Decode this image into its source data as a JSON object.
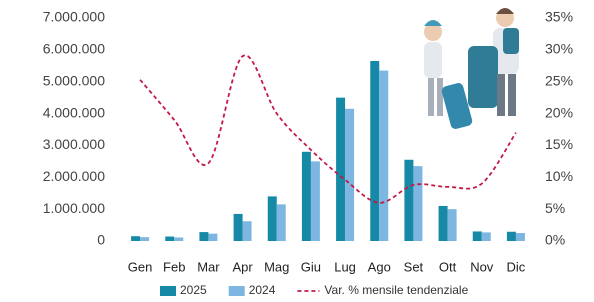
{
  "chart_data": {
    "type": "bar",
    "categories": [
      "Gen",
      "Feb",
      "Mar",
      "Apr",
      "Mag",
      "Giu",
      "Lug",
      "Ago",
      "Set",
      "Ott",
      "Nov",
      "Dic"
    ],
    "series": [
      {
        "name": "2025",
        "type": "bar",
        "color": "#1689a6",
        "values": [
          150000,
          140000,
          280000,
          850000,
          1400000,
          2800000,
          4500000,
          5650000,
          2550000,
          1100000,
          300000,
          290000
        ]
      },
      {
        "name": "2024",
        "type": "bar",
        "color": "#7db6e0",
        "values": [
          120000,
          110000,
          230000,
          620000,
          1150000,
          2500000,
          4150000,
          5350000,
          2350000,
          1000000,
          270000,
          250000
        ]
      },
      {
        "name": "Var. % mensile tendenziale",
        "type": "line",
        "axis": "y2",
        "color": "#c21a45",
        "values": [
          25.3,
          19,
          12.2,
          29,
          20,
          14.3,
          9.6,
          6,
          8.8,
          8.5,
          9,
          17
        ]
      }
    ],
    "ylim": [
      0,
      7000000
    ],
    "yticks": [
      {
        "value": 0,
        "label": "0"
      },
      {
        "value": 1000000,
        "label": "1.000.000"
      },
      {
        "value": 2000000,
        "label": "2.000.000"
      },
      {
        "value": 3000000,
        "label": "3.000.000"
      },
      {
        "value": 4000000,
        "label": "4.000.000"
      },
      {
        "value": 5000000,
        "label": "5.000.000"
      },
      {
        "value": 6000000,
        "label": "6.000.000"
      },
      {
        "value": 7000000,
        "label": "7.000.000"
      }
    ],
    "y2lim": [
      0,
      35
    ],
    "y2ticks": [
      {
        "value": 0,
        "label": "0%"
      },
      {
        "value": 5,
        "label": "5%"
      },
      {
        "value": 10,
        "label": "10%"
      },
      {
        "value": 15,
        "label": "15%"
      },
      {
        "value": 20,
        "label": "20%"
      },
      {
        "value": 25,
        "label": "25%"
      },
      {
        "value": 30,
        "label": "30%"
      },
      {
        "value": 35,
        "label": "35%"
      }
    ],
    "grid": false
  }
}
